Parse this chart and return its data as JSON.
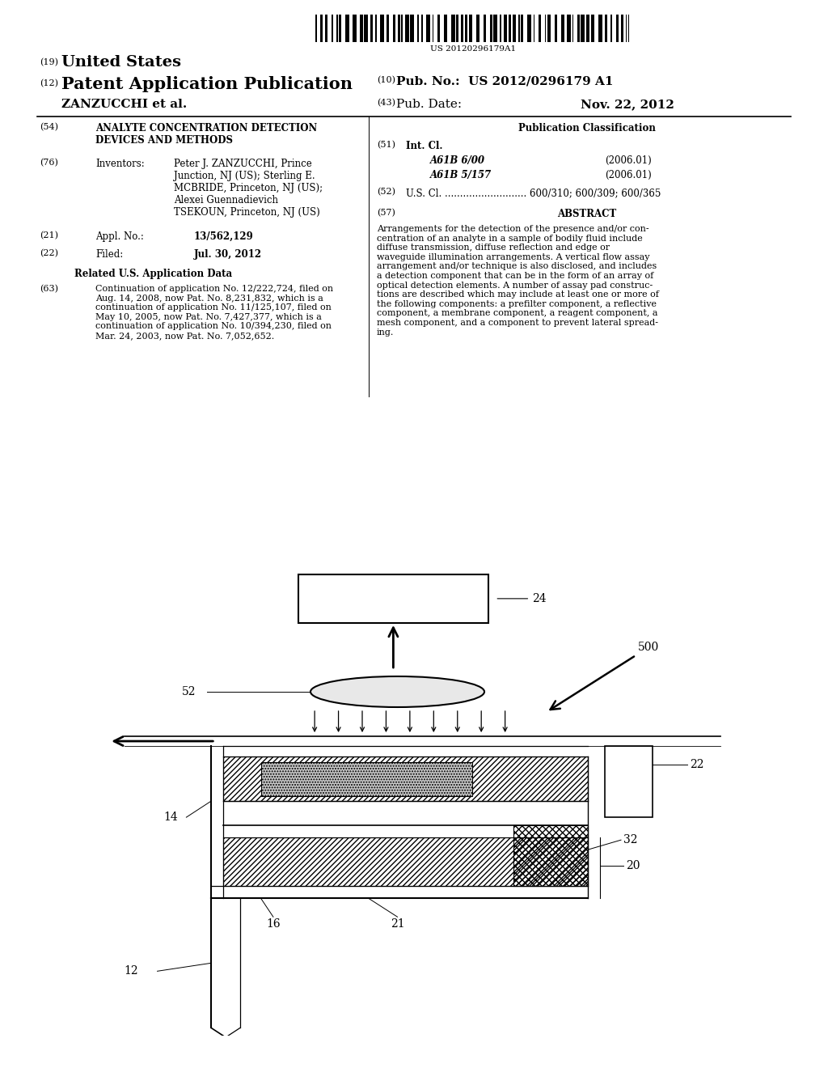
{
  "background_color": "#ffffff",
  "barcode_text": "US 20120296179A1",
  "header_left_19": "(19)",
  "header_united_states": "United States",
  "header_left_12": "(12)",
  "header_patent": "Patent Application Publication",
  "header_inventor_name": "ZANZUCCHI et al.",
  "header_10": "(10)",
  "header_pub_no_label": "Pub. No.:",
  "header_pub_no": "US 2012/0296179 A1",
  "header_43": "(43)",
  "header_pub_date_label": "Pub. Date:",
  "header_pub_date": "Nov. 22, 2012",
  "section_54_num": "(54)",
  "section_54_title": "ANALYTE CONCENTRATION DETECTION\nDEVICES AND METHODS",
  "section_76_num": "(76)",
  "section_76_label": "Inventors:",
  "section_76_text": "Peter J. ZANZUCCHI, Prince\nJunction, NJ (US); Sterling E.\nMCBRIDE, Princeton, NJ (US);\nAlexei Guennadievich\nTSEKOUN, Princeton, NJ (US)",
  "section_21_num": "(21)",
  "section_21_label": "Appl. No.:",
  "section_21_value": "13/562,129",
  "section_22_num": "(22)",
  "section_22_label": "Filed:",
  "section_22_value": "Jul. 30, 2012",
  "related_header": "Related U.S. Application Data",
  "section_63_num": "(63)",
  "section_63_text": "Continuation of application No. 12/222,724, filed on\nAug. 14, 2008, now Pat. No. 8,231,832, which is a\ncontinuation of application No. 11/125,107, filed on\nMay 10, 2005, now Pat. No. 7,427,377, which is a\ncontinuation of application No. 10/394,230, filed on\nMar. 24, 2003, now Pat. No. 7,052,652.",
  "pub_class_header": "Publication Classification",
  "section_51_num": "(51)",
  "section_51_label": "Int. Cl.",
  "section_51_class1_italic": "A61B 6/00",
  "section_51_class1_date": "(2006.01)",
  "section_51_class2_italic": "A61B 5/157",
  "section_51_class2_date": "(2006.01)",
  "section_52_num": "(52)",
  "section_52_label": "U.S. Cl.",
  "section_52_dots": "...........................",
  "section_52_value": "600/310; 600/309; 600/365",
  "section_57_num": "(57)",
  "section_57_label": "ABSTRACT",
  "abstract_text": "Arrangements for the detection of the presence and/or con-\ncentration of an analyte in a sample of bodily fluid include\ndiffuse transmission, diffuse reflection and edge or\nwaveguide illumination arrangements. A vertical flow assay\narrangement and/or technique is also disclosed, and includes\na detection component that can be in the form of an array of\noptical detection elements. A number of assay pad construc-\ntions are described which may include at least one or more of\nthe following components: a prefilter component, a reflective\ncomponent, a membrane component, a reagent component, a\nmesh component, and a component to prevent lateral spread-\ning."
}
